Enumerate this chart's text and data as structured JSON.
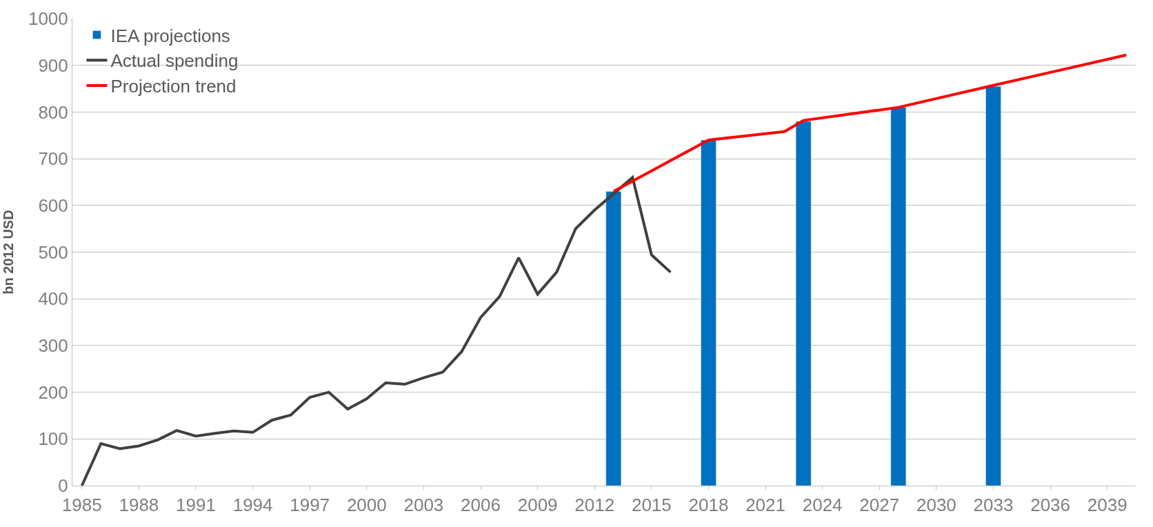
{
  "chart_data": {
    "type": "line",
    "ylabel": "bn 2012 USD",
    "xlim": [
      1984.5,
      2040.5
    ],
    "xticks": [
      1985,
      1988,
      1991,
      1994,
      1997,
      2000,
      2003,
      2006,
      2009,
      2012,
      2015,
      2018,
      2021,
      2024,
      2027,
      2030,
      2033,
      2036,
      2039
    ],
    "ylim": [
      0,
      1000
    ],
    "yticks": [
      0,
      100,
      200,
      300,
      400,
      500,
      600,
      700,
      800,
      900,
      1000
    ],
    "grid": "y",
    "legend": "top left",
    "series": [
      {
        "name": "IEA projections",
        "type": "bar",
        "color": "#0070c0",
        "x": [
          2013,
          2018,
          2023,
          2028,
          2033
        ],
        "values": [
          630,
          740,
          780,
          810,
          855
        ]
      },
      {
        "name": "Actual spending",
        "color": "#404040",
        "x": [
          1985,
          1986,
          1987,
          1988,
          1989,
          1990,
          1991,
          1992,
          1993,
          1994,
          1995,
          1996,
          1997,
          1998,
          1999,
          2000,
          2001,
          2002,
          2003,
          2004,
          2005,
          2006,
          2007,
          2008,
          2009,
          2010,
          2011,
          2012,
          2013,
          2014,
          2015,
          2016
        ],
        "values": [
          0,
          90,
          79,
          85,
          98,
          118,
          106,
          112,
          117,
          114,
          140,
          151,
          189,
          200,
          164,
          186,
          220,
          217,
          231,
          243,
          287,
          360,
          405,
          488,
          410,
          457,
          550,
          590,
          625,
          660,
          494,
          457
        ]
      },
      {
        "name": "Projection trend",
        "color": "#ff0000",
        "x": [
          2013,
          2018,
          2022,
          2023,
          2028,
          2033,
          2040
        ],
        "values": [
          630,
          740,
          758,
          782,
          810,
          857,
          922
        ]
      }
    ]
  }
}
